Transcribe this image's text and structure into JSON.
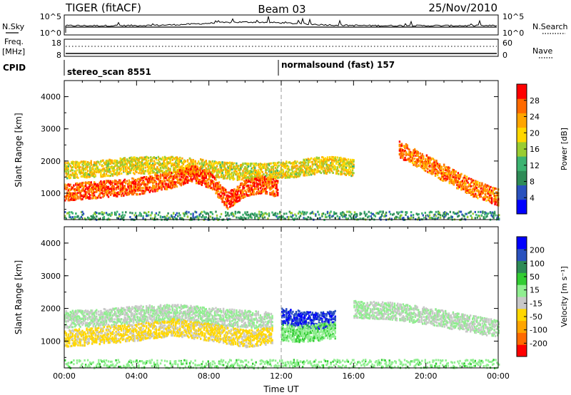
{
  "header": {
    "radar": "TIGER (fitACF)",
    "beam": "Beam 03",
    "date": "25/Nov/2010"
  },
  "top_panels": {
    "nsky_label": "N.Sky",
    "nsky_ticks": [
      "10^5",
      "10^0"
    ],
    "nsearch_label": "N.Search",
    "nsearch_ticks": [
      "10^5",
      "10^0"
    ],
    "freq_label": "Freq.",
    "freq_unit": "[MHz]",
    "freq_ticks": [
      "18",
      "8"
    ],
    "nave_label": "Nave",
    "nave_ticks": [
      "60",
      "0"
    ],
    "cpid_label": "CPID",
    "cpid_segments": [
      {
        "text": "stereo_scan 8551",
        "start_hour": 0
      },
      {
        "text": "normalsound (fast) 157",
        "start_hour": 12
      }
    ]
  },
  "chart_data": [
    {
      "type": "heatmap",
      "title": "",
      "xlabel": "",
      "ylabel": "Slant Range [km]",
      "xlim": [
        0,
        24
      ],
      "ylim": [
        180,
        4500
      ],
      "yticks": [
        "4000",
        "3000",
        "2000",
        "1000"
      ],
      "colorbar": {
        "label": "Power [dB]",
        "ticks": [
          "28",
          "24",
          "20",
          "16",
          "12",
          "8",
          "4"
        ],
        "range": [
          0,
          30
        ],
        "colors": [
          "#0000ff",
          "#2a52be",
          "#2e8b57",
          "#3cb371",
          "#9acd32",
          "#ffd700",
          "#ffa500",
          "#ff6a00",
          "#ff0000"
        ]
      },
      "bands": [
        {
          "x": [
            0,
            2,
            4,
            6,
            8,
            9.5,
            11,
            12,
            13,
            14,
            15,
            16
          ],
          "y": [
            1750,
            1800,
            1900,
            1900,
            1800,
            1700,
            1700,
            1750,
            1800,
            1900,
            1900,
            1800
          ],
          "level": 18
        },
        {
          "x": [
            0,
            2,
            4,
            6,
            7,
            8,
            9,
            10,
            11,
            11.8
          ],
          "y": [
            1050,
            1150,
            1250,
            1450,
            1650,
            1450,
            800,
            1200,
            1300,
            1150
          ],
          "level": 26
        },
        {
          "x": [
            18.5,
            19.5,
            20.5,
            21.5,
            22.5,
            24
          ],
          "y": [
            2400,
            2100,
            1800,
            1500,
            1200,
            900
          ],
          "level": 24
        },
        {
          "x": [
            0,
            4,
            8,
            12,
            16,
            20,
            24
          ],
          "y": [
            300,
            300,
            300,
            300,
            300,
            300,
            300
          ],
          "level": 10
        }
      ]
    },
    {
      "type": "heatmap",
      "title": "",
      "xlabel": "Time UT",
      "ylabel": "Slant Range [km]",
      "xlim": [
        0,
        24
      ],
      "ylim": [
        180,
        4500
      ],
      "xticks": [
        "00:00",
        "04:00",
        "08:00",
        "12:00",
        "16:00",
        "20:00",
        "00:00"
      ],
      "yticks": [
        "4000",
        "3000",
        "2000",
        "1000"
      ],
      "colorbar": {
        "label": "Velocity [m s⁻¹]",
        "ticks": [
          "200",
          "100",
          "50",
          "15",
          "-15",
          "-50",
          "-100",
          "-200"
        ],
        "range": [
          -250,
          250
        ],
        "colors": [
          "#ff0000",
          "#ff6a00",
          "#ffa500",
          "#ffd700",
          "#c8c8c8",
          "#90ee90",
          "#32cd32",
          "#2e8b57",
          "#2a52be",
          "#0000ff"
        ]
      },
      "bands": [
        {
          "x": [
            0,
            2,
            4,
            6,
            8,
            10,
            11.5
          ],
          "y": [
            1700,
            1750,
            1850,
            1900,
            1800,
            1700,
            1650
          ],
          "level": 0
        },
        {
          "x": [
            0,
            2,
            4,
            6,
            8,
            10,
            11.5
          ],
          "y": [
            1100,
            1200,
            1300,
            1450,
            1300,
            1100,
            1200
          ],
          "level": -60
        },
        {
          "x": [
            12,
            13,
            14,
            15
          ],
          "y": [
            1800,
            1700,
            1650,
            1700
          ],
          "level": 200
        },
        {
          "x": [
            12,
            13,
            14,
            15
          ],
          "y": [
            1300,
            1250,
            1300,
            1350
          ],
          "level": 40
        },
        {
          "x": [
            16,
            18,
            20,
            22,
            24
          ],
          "y": [
            2000,
            1950,
            1800,
            1600,
            1400
          ],
          "level": 0
        },
        {
          "x": [
            0,
            4,
            8,
            12,
            16,
            20,
            24
          ],
          "y": [
            300,
            300,
            300,
            300,
            300,
            300,
            300
          ],
          "level": 30
        }
      ]
    }
  ]
}
